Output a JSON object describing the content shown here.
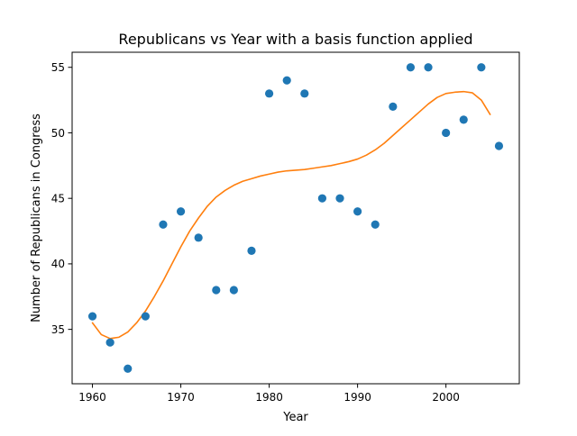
{
  "chart_data": {
    "type": "scatter",
    "title": "Republicans vs Year with a basis function applied",
    "xlabel": "Year",
    "ylabel": "Number of Republicans in Congress",
    "xlim": [
      1957.7,
      2008.3
    ],
    "ylim": [
      30.85,
      56.15
    ],
    "x_ticks": [
      1960,
      1970,
      1980,
      1990,
      2000
    ],
    "y_ticks": [
      35,
      40,
      45,
      50,
      55
    ],
    "grid": false,
    "legend": "none",
    "colors": {
      "points": "#1f77b4",
      "fit": "#ff7f0e"
    },
    "points": {
      "x": [
        1960,
        1962,
        1964,
        1966,
        1968,
        1970,
        1972,
        1974,
        1976,
        1978,
        1980,
        1982,
        1984,
        1986,
        1988,
        1990,
        1992,
        1994,
        1996,
        1998,
        2000,
        2002,
        2004,
        2006
      ],
      "y": [
        36,
        34,
        32,
        36,
        43,
        44,
        42,
        38,
        38,
        41,
        53,
        54,
        53,
        45,
        45,
        44,
        43,
        52,
        55,
        55,
        50,
        51,
        55,
        49
      ]
    },
    "fit": {
      "x": [
        1960,
        1961,
        1962,
        1963,
        1964,
        1965,
        1966,
        1967,
        1968,
        1969,
        1970,
        1971,
        1972,
        1973,
        1974,
        1975,
        1976,
        1977,
        1978,
        1979,
        1980,
        1981,
        1982,
        1983,
        1984,
        1985,
        1986,
        1987,
        1988,
        1989,
        1990,
        1991,
        1992,
        1993,
        1994,
        1995,
        1996,
        1997,
        1998,
        1999,
        2000,
        2001,
        2002,
        2003,
        2004,
        2005
      ],
      "y": [
        35.5,
        34.6,
        34.3,
        34.4,
        34.8,
        35.5,
        36.4,
        37.5,
        38.7,
        40.0,
        41.3,
        42.5,
        43.5,
        44.4,
        45.1,
        45.6,
        46.0,
        46.3,
        46.5,
        46.7,
        46.85,
        47.0,
        47.1,
        47.15,
        47.2,
        47.3,
        47.4,
        47.5,
        47.65,
        47.8,
        48.0,
        48.3,
        48.7,
        49.2,
        49.8,
        50.4,
        51.0,
        51.6,
        52.2,
        52.7,
        53.0,
        53.1,
        53.15,
        53.05,
        52.5,
        51.4
      ]
    }
  }
}
